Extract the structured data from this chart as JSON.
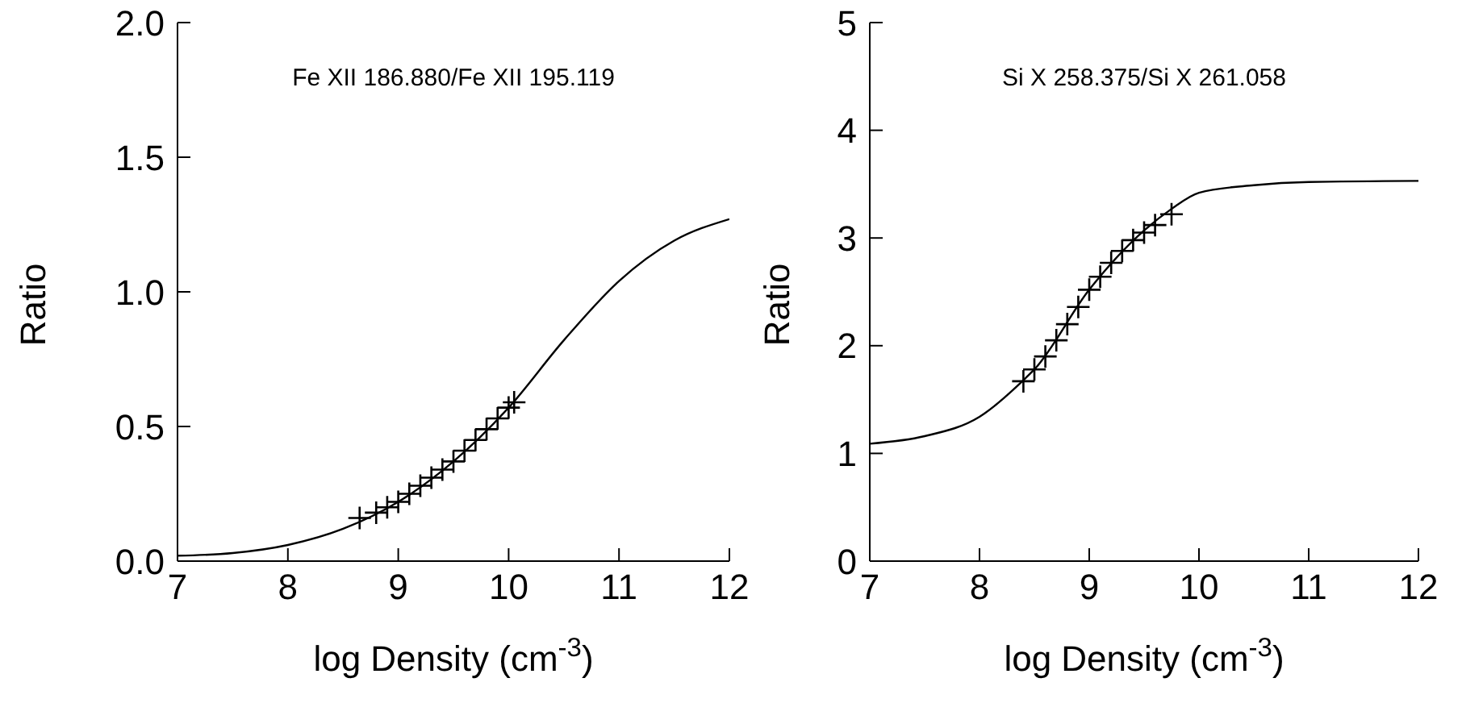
{
  "chart_data": [
    {
      "type": "line",
      "xlabel": "log Density (cm$^{-3}$)",
      "ylabel": "Ratio",
      "annotations": [
        "Fe XII 186.880/Fe XII 195.119"
      ],
      "xlim": [
        7,
        12
      ],
      "xticks": [
        7,
        8,
        9,
        10,
        11,
        12
      ],
      "ylim": [
        0,
        2
      ],
      "yticks": [
        {
          "value": 0,
          "label": "0.0"
        },
        {
          "value": 0.5,
          "label": "0.5"
        },
        {
          "value": 1,
          "label": "1.0"
        },
        {
          "value": 1.5,
          "label": "1.5"
        },
        {
          "value": 2,
          "label": "2.0"
        }
      ],
      "series": [
        {
          "type": "line",
          "color": "#000000",
          "marker": "none",
          "x": [
            7,
            7.5,
            8,
            8.5,
            9,
            9.5,
            10,
            10.5,
            11,
            11.5,
            12
          ],
          "values": [
            0.02,
            0.03,
            0.06,
            0.12,
            0.22,
            0.37,
            0.57,
            0.82,
            1.04,
            1.19,
            1.27
          ]
        },
        {
          "type": "scatter",
          "color": "#000000",
          "marker": "cross",
          "x": [
            8.65,
            8.8,
            8.9,
            9.0,
            9.1,
            9.2,
            9.3,
            9.4,
            9.5,
            9.6,
            9.7,
            9.8,
            9.9,
            10.0,
            10.05
          ],
          "values": [
            0.16,
            0.18,
            0.2,
            0.22,
            0.25,
            0.28,
            0.31,
            0.34,
            0.37,
            0.41,
            0.45,
            0.49,
            0.53,
            0.57,
            0.59
          ]
        }
      ]
    },
    {
      "type": "line",
      "xlabel": "log Density (cm$^{-3}$)",
      "ylabel": "Ratio",
      "annotations": [
        "Si X 258.375/Si X 261.058"
      ],
      "xlim": [
        7,
        12
      ],
      "xticks": [
        7,
        8,
        9,
        10,
        11,
        12
      ],
      "ylim": [
        0,
        5
      ],
      "yticks": [
        0,
        1,
        2,
        3,
        4,
        5
      ],
      "series": [
        {
          "type": "line",
          "color": "#000000",
          "marker": "none",
          "x": [
            7,
            7.5,
            8,
            8.4,
            8.5,
            9,
            9.5,
            9.75,
            10,
            10.5,
            11,
            12
          ],
          "values": [
            1.09,
            1.16,
            1.34,
            1.68,
            1.78,
            2.52,
            3.07,
            3.27,
            3.42,
            3.49,
            3.52,
            3.53
          ]
        },
        {
          "type": "scatter",
          "color": "#000000",
          "marker": "cross",
          "x": [
            8.4,
            8.5,
            8.6,
            8.7,
            8.8,
            8.9,
            9.0,
            9.1,
            9.2,
            9.3,
            9.4,
            9.5,
            9.6,
            9.75
          ],
          "values": [
            1.67,
            1.78,
            1.9,
            2.05,
            2.2,
            2.36,
            2.52,
            2.64,
            2.77,
            2.88,
            2.98,
            3.05,
            3.12,
            3.22
          ]
        }
      ]
    }
  ]
}
